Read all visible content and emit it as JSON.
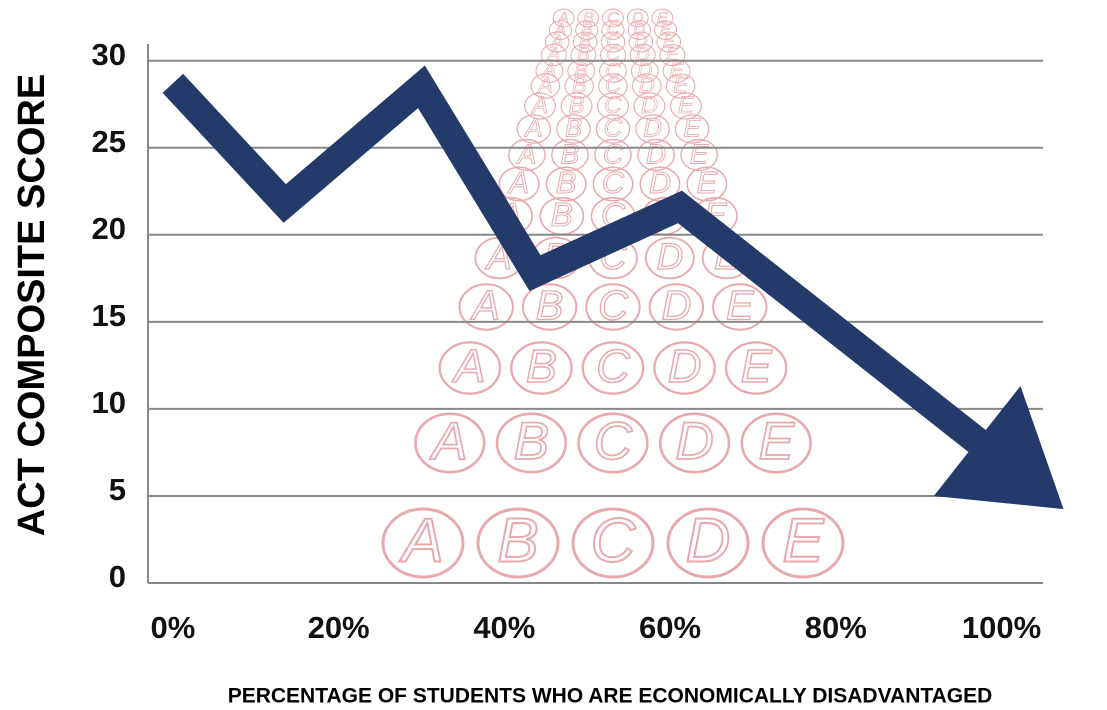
{
  "chart_data": {
    "type": "line",
    "x_label": "PERCENTAGE OF STUDENTS WHO ARE ECONOMICALLY DISADVANTAGED",
    "y_label": "ACT COMPOSITE SCORE",
    "x": [
      0,
      13.5,
      30,
      43.7,
      61.2,
      98
    ],
    "series": [
      {
        "name": "ACT composite score",
        "color": "#243a6b",
        "values": [
          28.7,
          21.8,
          28.5,
          17.8,
          21.6,
          7.8
        ]
      }
    ],
    "xlim": [
      -3,
      105
    ],
    "ylim": [
      0,
      30.5
    ],
    "xticks": [
      {
        "value": 0,
        "label": "0%"
      },
      {
        "value": 20,
        "label": "20%"
      },
      {
        "value": 40,
        "label": "40%"
      },
      {
        "value": 60,
        "label": "60%"
      },
      {
        "value": 80,
        "label": "80%"
      },
      {
        "value": 100,
        "label": "100%"
      }
    ],
    "yticks": [
      0,
      5,
      10,
      15,
      20,
      25,
      30
    ],
    "grid": true,
    "bubble_letters": [
      "A",
      "B",
      "C",
      "D",
      "E"
    ],
    "bubble_color": "#e8a9ad"
  }
}
